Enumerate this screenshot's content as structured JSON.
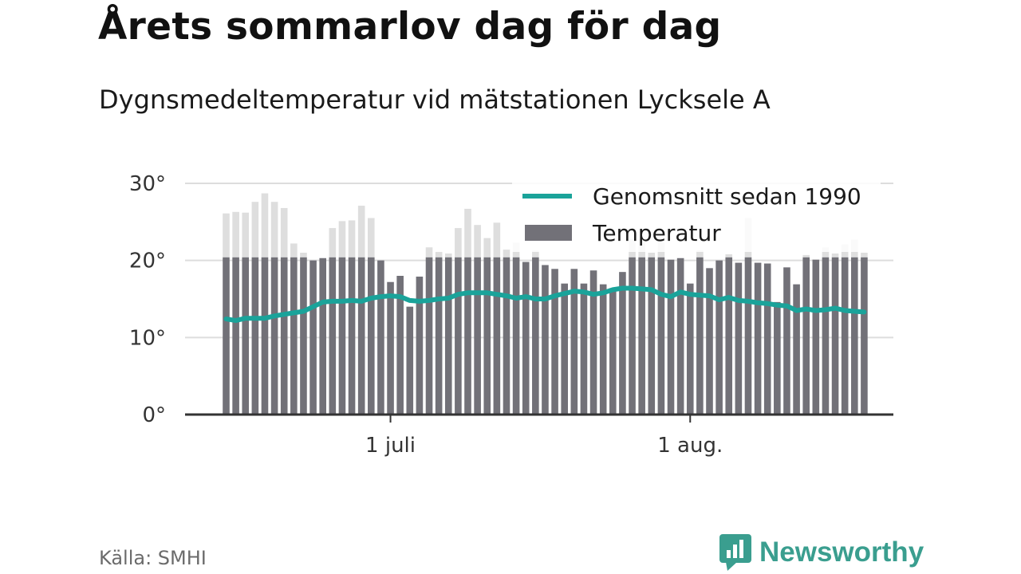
{
  "title": "Årets sommarlov dag för dag",
  "subtitle": "Dygnsmedeltemperatur vid mätstationen Lycksele A",
  "source": "Källa: SMHI",
  "brand": {
    "name": "Newsworthy",
    "icon": "newsworthy-logo-icon",
    "color": "#3a9e8f"
  },
  "chart_data": {
    "type": "bar",
    "ylim": [
      0,
      30
    ],
    "y_ticks": [
      {
        "value": 0,
        "label": "0°"
      },
      {
        "value": 10,
        "label": "10°"
      },
      {
        "value": 20,
        "label": "20°"
      },
      {
        "value": 30,
        "label": "30°"
      }
    ],
    "x_ticks": [
      {
        "index": 17,
        "label": "1 juli"
      },
      {
        "index": 48,
        "label": "1 aug."
      }
    ],
    "grid": true,
    "legend_position": "top-right",
    "colors": {
      "bars": "#727178",
      "bars_light": "#dedede",
      "line": "#1aa39a",
      "grid": "#dddddd",
      "axis": "#333333"
    },
    "series": [
      {
        "name": "Temperatur",
        "values": [
          26.1,
          26.3,
          26.2,
          27.6,
          28.7,
          27.6,
          26.8,
          22.2,
          21.0,
          20.0,
          20.3,
          24.2,
          25.1,
          25.2,
          27.1,
          25.5,
          20.0,
          17.2,
          18.0,
          14.0,
          17.9,
          21.7,
          21.1,
          20.9,
          24.2,
          26.7,
          24.6,
          22.9,
          24.9,
          21.4,
          22.3,
          19.8,
          21.3,
          19.4,
          18.9,
          17.0,
          18.9,
          17.0,
          18.7,
          16.9,
          16.4,
          18.5,
          22.8,
          22.8,
          21.0,
          22.3,
          20.1,
          20.3,
          17.0,
          21.3,
          19.0,
          20.0,
          20.8,
          19.7,
          25.5,
          19.7,
          19.6,
          14.6,
          19.1,
          16.9,
          20.7,
          20.1,
          21.7,
          20.9,
          22.1,
          22.7,
          21.0
        ],
        "cap": 20.4
      },
      {
        "name": "Genomsnitt sedan 1990",
        "values": [
          12.4,
          12.2,
          12.5,
          12.5,
          12.5,
          12.8,
          13.0,
          13.2,
          13.4,
          14.0,
          14.6,
          14.7,
          14.7,
          14.8,
          14.7,
          15.1,
          15.3,
          15.4,
          15.3,
          14.8,
          14.7,
          14.8,
          15.0,
          15.1,
          15.6,
          15.8,
          15.8,
          15.8,
          15.6,
          15.4,
          15.1,
          15.3,
          15.0,
          15.0,
          15.4,
          15.7,
          16.0,
          15.9,
          15.6,
          15.8,
          16.2,
          16.4,
          16.4,
          16.3,
          16.2,
          15.6,
          15.3,
          15.9,
          15.6,
          15.5,
          15.4,
          14.9,
          15.2,
          14.8,
          14.7,
          14.5,
          14.4,
          14.2,
          14.1,
          13.5,
          13.7,
          13.5,
          13.6,
          13.8,
          13.5,
          13.4,
          13.3
        ]
      }
    ]
  }
}
